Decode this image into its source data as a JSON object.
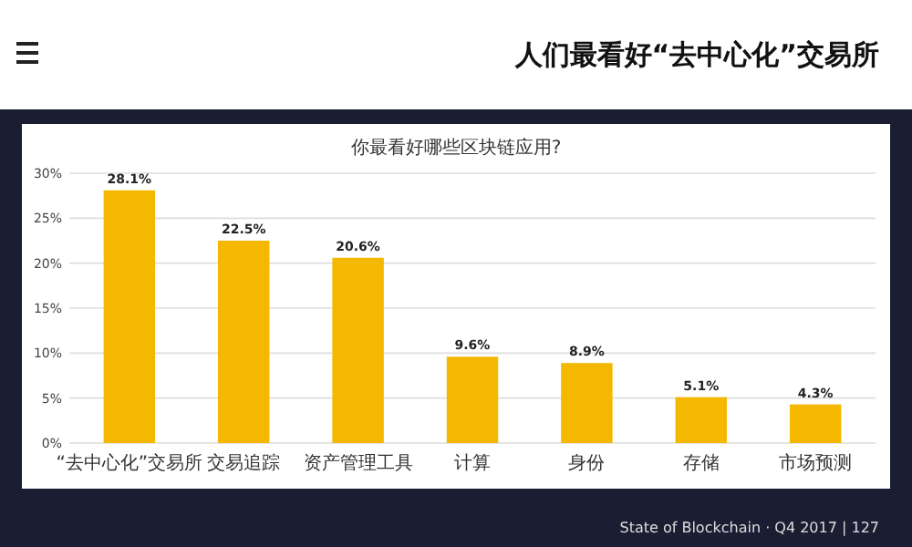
{
  "chart_data": {
    "type": "bar",
    "title": "人们最看好“去中心化”交易所",
    "subtitle": "你最看好哪些区块链应用?",
    "categories": [
      "“去中心化”交易所",
      "交易追踪",
      "资产管理工具",
      "计算",
      "身份",
      "存储",
      "市场预测"
    ],
    "values": [
      28.1,
      22.5,
      20.6,
      9.6,
      8.9,
      5.1,
      4.3
    ],
    "value_labels": [
      "28.1%",
      "22.5%",
      "20.6%",
      "9.6%",
      "8.9%",
      "5.1%",
      "4.3%"
    ],
    "color": "#f5b800",
    "ylim": [
      0,
      30
    ],
    "yticks": [
      {
        "value": 0,
        "label": "0%"
      },
      {
        "value": 5,
        "label": "5%"
      },
      {
        "value": 10,
        "label": "10%"
      },
      {
        "value": 15,
        "label": "15%"
      },
      {
        "value": 20,
        "label": "20%"
      },
      {
        "value": 25,
        "label": "25%"
      },
      {
        "value": 30,
        "label": "30%"
      }
    ],
    "grid": "y",
    "annotations": [
      "State of Blockchain · Q4 2017 | 127"
    ]
  }
}
